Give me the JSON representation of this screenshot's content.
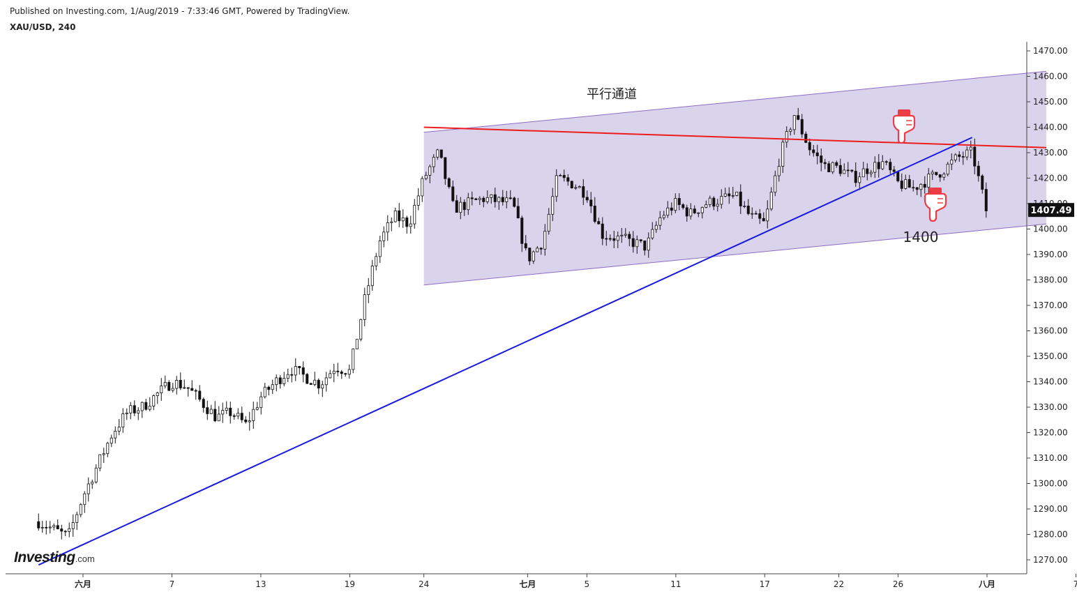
{
  "header": {
    "published": "Published on Investing.com, 1/Aug/2019 - 7:33:46 GMT, Powered by TradingView.",
    "symbol": "XAU/USD, 240"
  },
  "logo": {
    "main": "Investing",
    "suffix": ".com"
  },
  "colors": {
    "channel_fill": "#dad3ec",
    "channel_border": "#8e6cc4",
    "resistance": "#ee1c1c",
    "trendline": "#1a1adf",
    "candle": "#111111",
    "price_tag_bg": "#111111",
    "hand_icon": "#ee3c44"
  },
  "icons": [
    "hand-pointing-down-icon",
    "hand-pointing-down-icon"
  ],
  "chart_data": {
    "type": "candlestick",
    "title": "",
    "ylim": [
      1264,
      1476
    ],
    "y_ticks": [
      1270,
      1280,
      1290,
      1300,
      1310,
      1320,
      1330,
      1340,
      1350,
      1360,
      1370,
      1380,
      1390,
      1400,
      1410,
      1420,
      1430,
      1440,
      1450,
      1460,
      1470
    ],
    "y_tick_labels": [
      "1270.00",
      "1280.00",
      "1290.00",
      "1300.00",
      "1310.00",
      "1320.00",
      "1330.00",
      "1340.00",
      "1350.00",
      "1360.00",
      "1370.00",
      "1380.00",
      "1390.00",
      "1400.00",
      "1410.00",
      "1420.00",
      "1430.00",
      "1440.00",
      "1450.00",
      "1460.00",
      "1470.00"
    ],
    "x_ticks": [
      {
        "label": "六月",
        "bold": true,
        "date": "2019-06-01"
      },
      {
        "label": "7",
        "bold": false,
        "date": "2019-06-07"
      },
      {
        "label": "13",
        "bold": false,
        "date": "2019-06-13"
      },
      {
        "label": "19",
        "bold": false,
        "date": "2019-06-19"
      },
      {
        "label": "24",
        "bold": false,
        "date": "2019-06-24"
      },
      {
        "label": "七月",
        "bold": true,
        "date": "2019-07-01"
      },
      {
        "label": "5",
        "bold": false,
        "date": "2019-07-05"
      },
      {
        "label": "11",
        "bold": false,
        "date": "2019-07-11"
      },
      {
        "label": "17",
        "bold": false,
        "date": "2019-07-17"
      },
      {
        "label": "22",
        "bold": false,
        "date": "2019-07-22"
      },
      {
        "label": "26",
        "bold": false,
        "date": "2019-07-26"
      },
      {
        "label": "八月",
        "bold": true,
        "date": "2019-08-01"
      },
      {
        "label": "7",
        "bold": false,
        "date": "2019-08-07"
      }
    ],
    "last_price": 1407.49,
    "last_price_label": "1407.49",
    "close_path": [
      [
        "2019-05-29",
        1285
      ],
      [
        "2019-05-30",
        1282
      ],
      [
        "2019-05-31",
        1279
      ],
      [
        "2019-06-01",
        1295
      ],
      [
        "2019-06-03",
        1320
      ],
      [
        "2019-06-04",
        1328
      ],
      [
        "2019-06-05",
        1330
      ],
      [
        "2019-06-06",
        1335
      ],
      [
        "2019-06-07",
        1340
      ],
      [
        "2019-06-08",
        1338
      ],
      [
        "2019-06-10",
        1326
      ],
      [
        "2019-06-11",
        1328
      ],
      [
        "2019-06-12",
        1323
      ],
      [
        "2019-06-13",
        1334
      ],
      [
        "2019-06-14",
        1340
      ],
      [
        "2019-06-15",
        1345
      ],
      [
        "2019-06-17",
        1339
      ],
      [
        "2019-06-18",
        1346
      ],
      [
        "2019-06-19",
        1344
      ],
      [
        "2019-06-20",
        1372
      ],
      [
        "2019-06-21",
        1395
      ],
      [
        "2019-06-22",
        1405
      ],
      [
        "2019-06-23",
        1402
      ],
      [
        "2019-06-24",
        1420
      ],
      [
        "2019-06-25",
        1430
      ],
      [
        "2019-06-26",
        1408
      ],
      [
        "2019-06-27",
        1410
      ],
      [
        "2019-06-28",
        1412
      ],
      [
        "2019-06-30",
        1410
      ],
      [
        "2019-07-01",
        1388
      ],
      [
        "2019-07-02",
        1395
      ],
      [
        "2019-07-03",
        1420
      ],
      [
        "2019-07-04",
        1418
      ],
      [
        "2019-07-05",
        1414
      ],
      [
        "2019-07-06",
        1398
      ],
      [
        "2019-07-08",
        1395
      ],
      [
        "2019-07-09",
        1393
      ],
      [
        "2019-07-10",
        1405
      ],
      [
        "2019-07-11",
        1410
      ],
      [
        "2019-07-12",
        1406
      ],
      [
        "2019-07-13",
        1410
      ],
      [
        "2019-07-15",
        1413
      ],
      [
        "2019-07-16",
        1405
      ],
      [
        "2019-07-17",
        1402
      ],
      [
        "2019-07-18",
        1428
      ],
      [
        "2019-07-19",
        1445
      ],
      [
        "2019-07-20",
        1432
      ],
      [
        "2019-07-21",
        1425
      ],
      [
        "2019-07-22",
        1424
      ],
      [
        "2019-07-23",
        1420
      ],
      [
        "2019-07-24",
        1424
      ],
      [
        "2019-07-25",
        1426
      ],
      [
        "2019-07-26",
        1418
      ],
      [
        "2019-07-27",
        1416
      ],
      [
        "2019-07-29",
        1423
      ],
      [
        "2019-07-30",
        1428
      ],
      [
        "2019-07-31",
        1430
      ],
      [
        "2019-08-01",
        1406
      ]
    ],
    "annotations": [
      {
        "type": "channel",
        "label": "平行通道",
        "upper": [
          [
            "2019-06-24",
            1438
          ],
          [
            "2019-08-05",
            1462
          ]
        ],
        "lower": [
          [
            "2019-06-24",
            1378
          ],
          [
            "2019-08-05",
            1402
          ]
        ]
      },
      {
        "type": "line",
        "name": "resistance",
        "points": [
          [
            "2019-06-24",
            1440
          ],
          [
            "2019-08-05",
            1432
          ]
        ]
      },
      {
        "type": "line",
        "name": "trendline",
        "points": [
          [
            "2019-05-29",
            1268
          ],
          [
            "2019-07-31",
            1436
          ]
        ]
      },
      {
        "type": "text",
        "label": "1400"
      }
    ]
  }
}
